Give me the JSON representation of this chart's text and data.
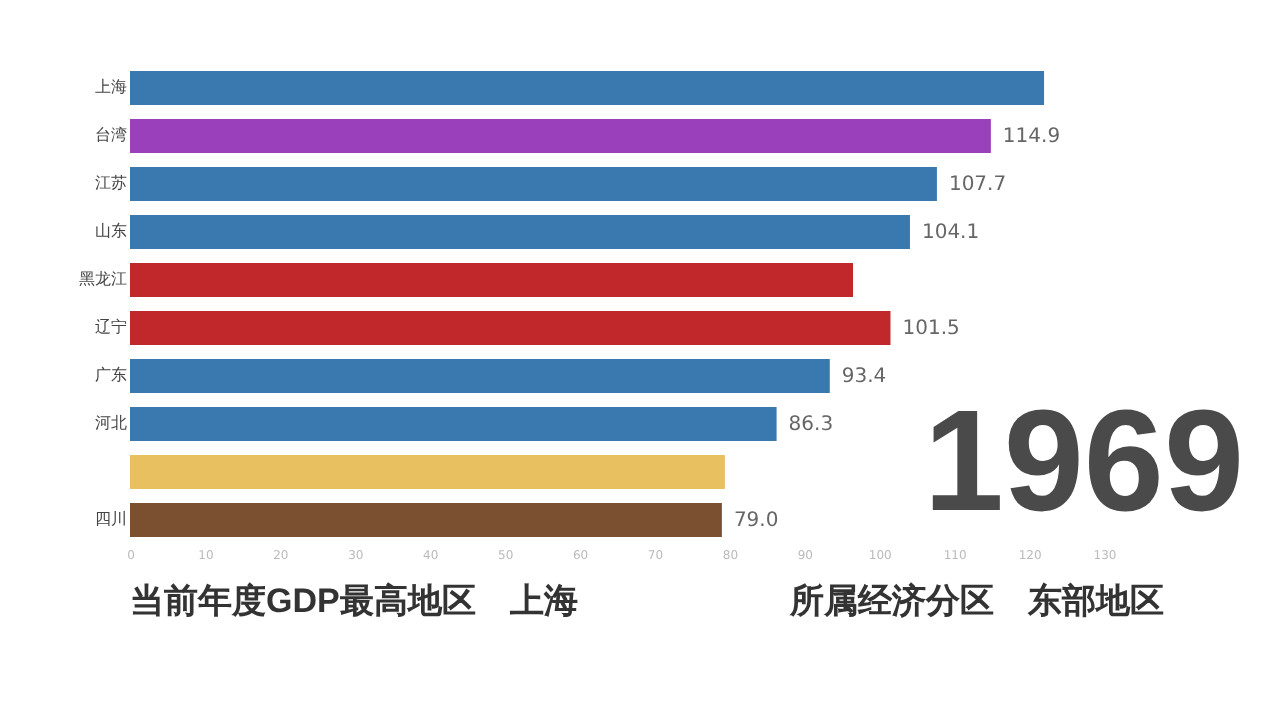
{
  "chart_data": {
    "type": "bar",
    "orientation": "horizontal",
    "categories": [
      "上海",
      "台湾",
      "江苏",
      "山东",
      "黑龙江",
      "辽宁",
      "广东",
      "河北",
      null,
      "四川"
    ],
    "values": [
      122,
      114.9,
      107.7,
      104.1,
      96.5,
      101.5,
      93.4,
      86.3,
      79.4,
      79.0
    ],
    "value_labels": [
      null,
      "114.9",
      "107.7",
      "104.1",
      null,
      "101.5",
      "93.4",
      "86.3",
      null,
      "79.0"
    ],
    "colors": [
      "#3a78b0",
      "#9b40bb",
      "#3a78b0",
      "#3a78b0",
      "#c0282c",
      "#c0282c",
      "#3a78b0",
      "#3a78b0",
      "#e8c060",
      "#7a5030"
    ],
    "xlim": [
      0,
      130
    ],
    "xticks": [
      0,
      10,
      20,
      30,
      40,
      50,
      60,
      70,
      80,
      90,
      100,
      110,
      120,
      130
    ],
    "grid": false,
    "annotations": [
      "1969",
      "当前年度GDP最高地区　上海",
      "所属经济分区　东部地区"
    ]
  }
}
